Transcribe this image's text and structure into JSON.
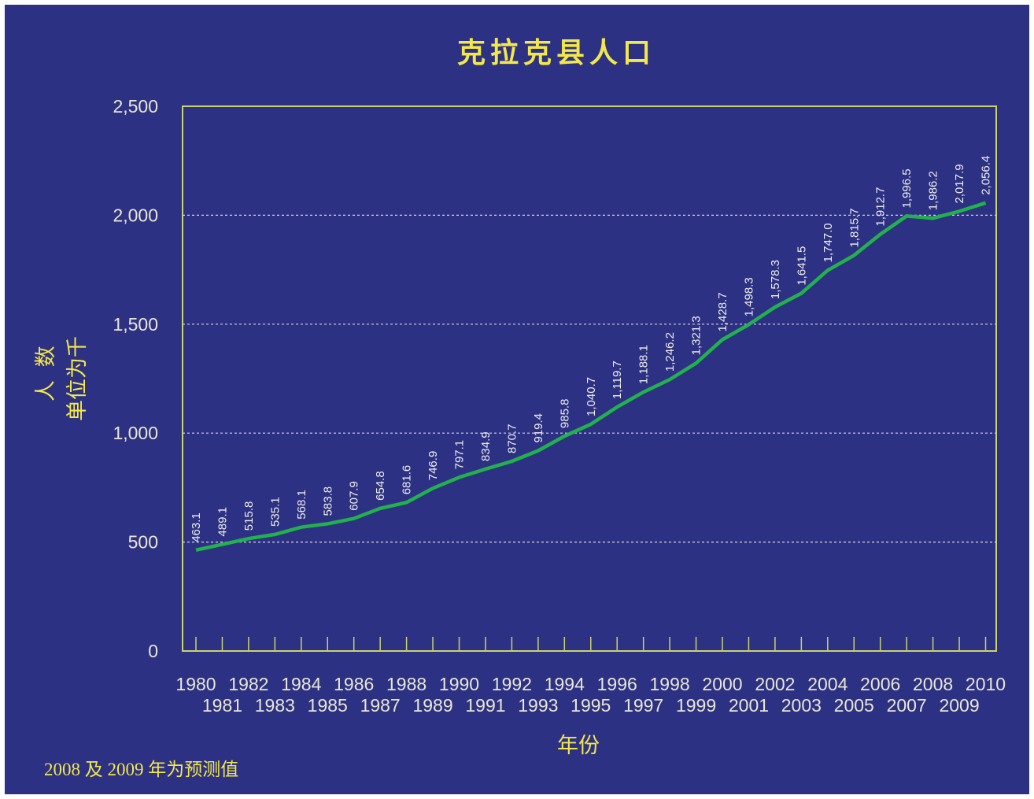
{
  "chart_data": {
    "type": "line",
    "title": "克拉克县人口",
    "ylabel_line1": "人 数",
    "ylabel_line2": "单位为千",
    "xlabel": "年份",
    "note": "2008 及 2009 年为预测值",
    "ylim": [
      0,
      2500
    ],
    "yticks": [
      "0",
      "500",
      "1,000",
      "1,500",
      "2,000",
      "2,500"
    ],
    "grid": "horizontal dashed",
    "x": [
      1980,
      1981,
      1982,
      1983,
      1984,
      1985,
      1986,
      1987,
      1988,
      1989,
      1990,
      1991,
      1992,
      1993,
      1994,
      1995,
      1996,
      1997,
      1998,
      1999,
      2000,
      2001,
      2002,
      2003,
      2004,
      2005,
      2006,
      2007,
      2008,
      2009,
      2010
    ],
    "values": [
      463.1,
      489.1,
      515.8,
      535.1,
      568.1,
      583.8,
      607.9,
      654.8,
      681.6,
      746.9,
      797.1,
      834.9,
      870.7,
      919.4,
      985.8,
      1040.7,
      1119.7,
      1188.1,
      1246.2,
      1321.3,
      1428.7,
      1498.3,
      1578.3,
      1641.5,
      1747.0,
      1815.7,
      1912.7,
      1996.5,
      1986.2,
      2017.9,
      2056.4
    ],
    "labels": [
      "463.1",
      "489.1",
      "515.8",
      "535.1",
      "568.1",
      "583.8",
      "607.9",
      "654.8",
      "681.6",
      "746.9",
      "797.1",
      "834.9",
      "870.7",
      "919.4",
      "985.8",
      "1,040.7",
      "1,119.7",
      "1,188.1",
      "1,246.2",
      "1,321.3",
      "1,428.7",
      "1,498.3",
      "1,578.3",
      "1,641.5",
      "1,747.0",
      "1,815.7",
      "1,912.7",
      "1,996.5",
      "1,986.2",
      "2,017.9",
      "2,056.4"
    ],
    "colors": {
      "background": "#2d3183",
      "line": "#22b14c",
      "axis": "#c9d36a",
      "text": "#f3e84a"
    }
  }
}
